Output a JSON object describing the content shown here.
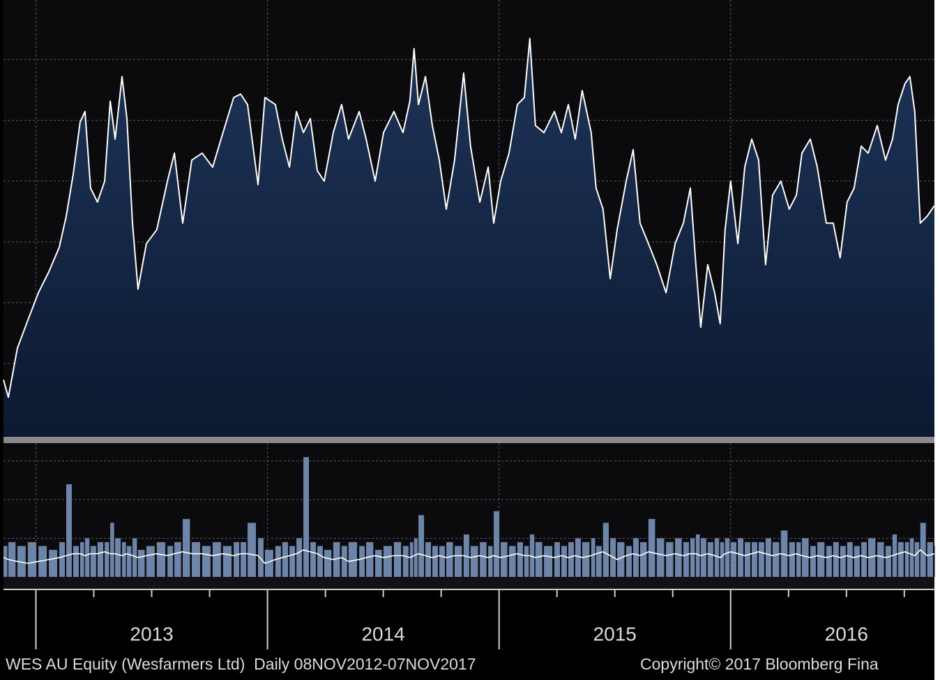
{
  "chart_data": [
    {
      "type": "area",
      "x": [
        2012.86,
        2012.881,
        2012.92,
        2012.965,
        2013.011,
        2013.056,
        2013.101,
        2013.131,
        2013.161,
        2013.191,
        2013.212,
        2013.236,
        2013.266,
        2013.297,
        2013.321,
        2013.342,
        2013.372,
        2013.393,
        2013.417,
        2013.441,
        2013.477,
        2013.522,
        2013.568,
        2013.598,
        2013.634,
        2013.673,
        2013.718,
        2013.763,
        2013.808,
        2013.854,
        2013.884,
        2013.914,
        2013.959,
        2013.989,
        2014.034,
        2014.064,
        2014.095,
        2014.125,
        2014.155,
        2014.185,
        2014.215,
        2014.245,
        2014.284,
        2014.32,
        2014.35,
        2014.396,
        2014.426,
        2014.465,
        2014.501,
        2014.546,
        2014.585,
        2014.615,
        2014.633,
        2014.652,
        2014.682,
        2014.712,
        2014.742,
        2014.772,
        2014.808,
        2014.847,
        2014.877,
        2014.917,
        2014.953,
        2014.977,
        2015.007,
        2015.043,
        2015.079,
        2015.109,
        2015.133,
        2015.157,
        2015.194,
        2015.239,
        2015.269,
        2015.299,
        2015.329,
        2015.359,
        2015.398,
        2015.419,
        2015.449,
        2015.48,
        2015.51,
        2015.549,
        2015.579,
        2015.609,
        2015.645,
        2015.681,
        2015.721,
        2015.76,
        2015.796,
        2015.826,
        2015.85,
        2015.871,
        2015.901,
        2015.931,
        2015.955,
        2015.976,
        2016.0,
        2016.031,
        2016.061,
        2016.091,
        2016.121,
        2016.151,
        2016.181,
        2016.217,
        2016.253,
        2016.284,
        2016.308,
        2016.344,
        2016.374,
        2016.413,
        2016.443,
        2016.473,
        2016.503,
        2016.533,
        2016.564,
        2016.594,
        2016.633,
        2016.669,
        2016.699,
        2016.723,
        2016.753,
        2016.774,
        2016.795,
        2016.819,
        2016.849,
        2016.88
      ],
      "series": [
        {
          "color": "#ffffff",
          "fill": "#15284a",
          "values": [
            13.2,
            9.2,
            20.4,
            26.8,
            33.1,
            37.9,
            43.5,
            50.6,
            60.2,
            72.1,
            74.5,
            57.0,
            53.8,
            58.6,
            76.9,
            68.2,
            82.5,
            72.9,
            49.0,
            33.9,
            44.3,
            47.5,
            58.6,
            65.0,
            49.0,
            63.4,
            65.0,
            61.8,
            69.7,
            77.7,
            78.5,
            76.1,
            57.8,
            77.7,
            76.1,
            68.2,
            61.8,
            74.5,
            69.7,
            72.9,
            61.0,
            58.6,
            69.7,
            76.1,
            68.2,
            74.5,
            68.2,
            58.6,
            69.7,
            74.5,
            69.7,
            76.9,
            88.9,
            76.1,
            82.5,
            71.3,
            63.4,
            52.2,
            63.4,
            83.3,
            66.6,
            53.8,
            61.8,
            49.0,
            58.6,
            65.0,
            76.1,
            77.7,
            91.2,
            71.3,
            69.7,
            74.5,
            69.7,
            76.1,
            68.2,
            79.3,
            69.7,
            57.0,
            52.2,
            36.3,
            47.5,
            58.6,
            65.8,
            49.0,
            44.3,
            39.5,
            33.1,
            44.3,
            49.0,
            57.0,
            39.5,
            25.2,
            39.5,
            33.1,
            26.0,
            47.5,
            58.6,
            44.3,
            61.8,
            68.2,
            63.4,
            39.5,
            55.4,
            58.6,
            52.2,
            55.4,
            65.0,
            68.2,
            61.8,
            49.0,
            49.0,
            41.1,
            53.8,
            57.0,
            66.6,
            65.0,
            71.3,
            63.4,
            68.2,
            76.1,
            80.9,
            82.5,
            74.5,
            49.0,
            50.6,
            53.0
          ]
        }
      ],
      "xlim": [
        2012.86,
        2016.88
      ],
      "xticks": [
        2013,
        2014,
        2015,
        2016
      ],
      "ylim": [
        0,
        100
      ],
      "yticks": [
        16.9,
        30.8,
        44.7,
        58.6,
        72.5,
        86.4
      ],
      "grid": true
    },
    {
      "type": "bar",
      "x": [
        2012.86,
        2012.881,
        2012.92,
        2012.965,
        2013.011,
        2013.056,
        2013.101,
        2013.131,
        2013.161,
        2013.191,
        2013.212,
        2013.236,
        2013.266,
        2013.297,
        2013.321,
        2013.342,
        2013.372,
        2013.393,
        2013.417,
        2013.441,
        2013.477,
        2013.522,
        2013.568,
        2013.598,
        2013.634,
        2013.673,
        2013.718,
        2013.763,
        2013.808,
        2013.854,
        2013.884,
        2013.914,
        2013.959,
        2013.989,
        2014.034,
        2014.064,
        2014.095,
        2014.125,
        2014.155,
        2014.185,
        2014.215,
        2014.245,
        2014.284,
        2014.32,
        2014.35,
        2014.396,
        2014.426,
        2014.465,
        2014.501,
        2014.546,
        2014.585,
        2014.615,
        2014.633,
        2014.652,
        2014.682,
        2014.712,
        2014.742,
        2014.772,
        2014.808,
        2014.847,
        2014.877,
        2014.917,
        2014.953,
        2014.977,
        2015.007,
        2015.043,
        2015.079,
        2015.109,
        2015.133,
        2015.157,
        2015.194,
        2015.239,
        2015.269,
        2015.299,
        2015.329,
        2015.359,
        2015.398,
        2015.419,
        2015.449,
        2015.48,
        2015.51,
        2015.549,
        2015.579,
        2015.609,
        2015.645,
        2015.681,
        2015.721,
        2015.76,
        2015.796,
        2015.826,
        2015.85,
        2015.871,
        2015.901,
        2015.931,
        2015.955,
        2015.976,
        2016.0,
        2016.031,
        2016.061,
        2016.091,
        2016.121,
        2016.151,
        2016.181,
        2016.217,
        2016.253,
        2016.284,
        2016.308,
        2016.344,
        2016.374,
        2016.413,
        2016.443,
        2016.473,
        2016.503,
        2016.533,
        2016.564,
        2016.594,
        2016.633,
        2016.669,
        2016.699,
        2016.723,
        2016.753,
        2016.774,
        2016.795,
        2016.819,
        2016.849,
        2016.88
      ],
      "series": [
        {
          "type": "bar",
          "color": "#6e85aa",
          "values": [
            0.8,
            0.9,
            0.8,
            0.9,
            0.8,
            0.7,
            0.9,
            2.4,
            0.8,
            0.9,
            1.0,
            0.8,
            0.9,
            0.9,
            1.4,
            1.0,
            0.9,
            0.8,
            1.0,
            0.7,
            0.8,
            0.9,
            0.8,
            0.9,
            1.5,
            0.9,
            0.8,
            0.9,
            0.8,
            0.9,
            0.9,
            1.4,
            1.0,
            0.7,
            0.8,
            0.9,
            0.8,
            1.0,
            3.1,
            0.9,
            0.8,
            0.7,
            0.9,
            0.8,
            0.9,
            0.8,
            0.9,
            0.7,
            0.8,
            0.9,
            0.8,
            0.9,
            1.0,
            1.6,
            0.9,
            0.8,
            0.8,
            0.9,
            0.8,
            1.1,
            0.8,
            0.9,
            0.8,
            1.7,
            0.9,
            0.8,
            0.9,
            0.8,
            1.1,
            0.9,
            0.8,
            0.9,
            0.8,
            0.9,
            1.0,
            0.9,
            1.0,
            0.8,
            1.4,
            1.0,
            0.9,
            0.8,
            1.0,
            0.9,
            1.5,
            1.0,
            0.9,
            1.0,
            0.9,
            1.0,
            1.1,
            1.0,
            0.9,
            1.0,
            0.9,
            1.0,
            0.9,
            1.0,
            0.9,
            0.9,
            0.9,
            1.0,
            0.9,
            1.2,
            0.9,
            0.9,
            1.0,
            0.8,
            0.9,
            0.8,
            0.9,
            0.8,
            0.9,
            0.8,
            0.9,
            1.0,
            0.9,
            0.8,
            1.1,
            0.9,
            0.9,
            1.0,
            0.9,
            1.4,
            0.9,
            0.8
          ]
        },
        {
          "type": "line",
          "color": "#ffffff",
          "values": [
            0.5,
            0.45,
            0.4,
            0.35,
            0.4,
            0.45,
            0.5,
            0.55,
            0.6,
            0.6,
            0.55,
            0.6,
            0.6,
            0.65,
            0.6,
            0.6,
            0.55,
            0.6,
            0.55,
            0.5,
            0.55,
            0.6,
            0.55,
            0.6,
            0.65,
            0.6,
            0.6,
            0.55,
            0.6,
            0.55,
            0.6,
            0.6,
            0.55,
            0.35,
            0.45,
            0.5,
            0.55,
            0.6,
            0.7,
            0.65,
            0.6,
            0.5,
            0.45,
            0.5,
            0.4,
            0.45,
            0.5,
            0.55,
            0.5,
            0.55,
            0.55,
            0.5,
            0.55,
            0.6,
            0.55,
            0.5,
            0.55,
            0.5,
            0.55,
            0.55,
            0.5,
            0.55,
            0.5,
            0.55,
            0.5,
            0.55,
            0.6,
            0.55,
            0.55,
            0.5,
            0.55,
            0.5,
            0.55,
            0.5,
            0.55,
            0.5,
            0.55,
            0.6,
            0.65,
            0.55,
            0.45,
            0.55,
            0.6,
            0.55,
            0.65,
            0.6,
            0.55,
            0.6,
            0.55,
            0.6,
            0.6,
            0.55,
            0.6,
            0.55,
            0.5,
            0.6,
            0.65,
            0.6,
            0.55,
            0.6,
            0.65,
            0.6,
            0.55,
            0.6,
            0.55,
            0.6,
            0.55,
            0.5,
            0.55,
            0.5,
            0.55,
            0.5,
            0.55,
            0.5,
            0.55,
            0.5,
            0.55,
            0.5,
            0.55,
            0.6,
            0.65,
            0.6,
            0.55,
            0.7,
            0.55,
            0.6
          ]
        }
      ],
      "xlim": [
        2012.86,
        2016.88
      ],
      "xticks": [
        2013,
        2014,
        2015,
        2016
      ],
      "minor_xticks": [
        2013.25,
        2013.5,
        2013.75,
        2014.25,
        2014.5,
        2014.75,
        2015.25,
        2015.5,
        2015.75,
        2016.25,
        2016.5,
        2016.75
      ],
      "ylim": [
        0,
        3.5
      ],
      "yticks": [
        1,
        2,
        3
      ],
      "grid": true
    }
  ],
  "footer": {
    "left": "WES AU Equity (Wesfarmers Ltd)  Daily 08NOV2012-07NOV2017",
    "right": "Copyright© 2017 Bloomberg Fina"
  }
}
